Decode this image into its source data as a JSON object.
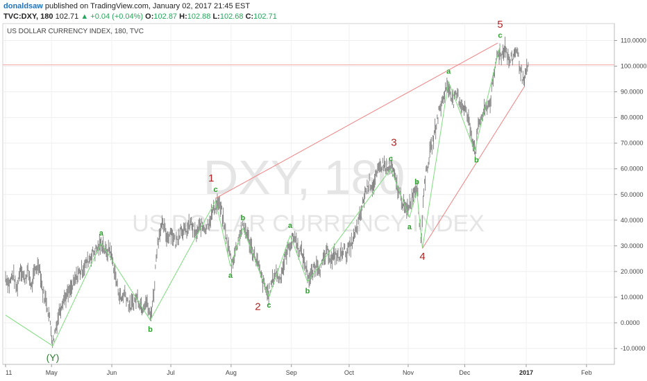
{
  "header": {
    "user": "donaldsaw",
    "published": "published on TradingView.com, January 02, 2017 21:45 EST",
    "symbol": "TVC:DXY, 180",
    "last": "102.71",
    "change": "+0.04 (+0.04%)",
    "o_label": "O:",
    "o_value": "102.87",
    "h_label": "H:",
    "h_value": "102.88",
    "l_label": "L:",
    "l_value": "102.68",
    "c_label": "C:",
    "c_value": "102.71"
  },
  "watermark": {
    "symbol": "DXY, 180",
    "name": "US DOLLAR CURRENCY INDEX"
  },
  "chart_data": {
    "type": "line",
    "title": "US DOLLAR CURRENCY INDEX, 180, TVC",
    "ylim": [
      -15,
      115
    ],
    "xlim": [
      0,
      100
    ],
    "grid": true,
    "yticks": [
      {
        "v": 110,
        "label": "110.0000"
      },
      {
        "v": 100,
        "label": "100.0000"
      },
      {
        "v": 90,
        "label": "90.0000"
      },
      {
        "v": 80,
        "label": "80.0000"
      },
      {
        "v": 70,
        "label": "70.0000"
      },
      {
        "v": 60,
        "label": "60.0000"
      },
      {
        "v": 50,
        "label": "50.0000"
      },
      {
        "v": 40,
        "label": "40.0000"
      },
      {
        "v": 30,
        "label": "30.0000"
      },
      {
        "v": 20,
        "label": "20.0000"
      },
      {
        "v": 10,
        "label": "10.0000"
      },
      {
        "v": 0,
        "label": "0.0000"
      },
      {
        "v": -10,
        "label": "-10.0000"
      }
    ],
    "xticks": [
      {
        "t": 0,
        "label": "11"
      },
      {
        "t": 7.4,
        "label": "May"
      },
      {
        "t": 17.1,
        "label": "Jun"
      },
      {
        "t": 26.6,
        "label": "Jul"
      },
      {
        "t": 36.3,
        "label": "Aug"
      },
      {
        "t": 46.0,
        "label": "Sep"
      },
      {
        "t": 55.3,
        "label": "Oct"
      },
      {
        "t": 64.8,
        "label": "Nov"
      },
      {
        "t": 73.9,
        "label": "Dec"
      },
      {
        "t": 83.8,
        "label": "2017"
      },
      {
        "t": 93.5,
        "label": "Feb"
      }
    ],
    "reference_line": {
      "y": 100.5,
      "color": "#f4a6a6"
    },
    "price_anchors": [
      [
        0,
        18
      ],
      [
        0.6,
        15
      ],
      [
        1.2,
        19
      ],
      [
        1.8,
        13
      ],
      [
        2.4,
        22
      ],
      [
        3,
        17
      ],
      [
        3.6,
        20
      ],
      [
        4.2,
        14
      ],
      [
        4.8,
        21
      ],
      [
        5.4,
        23
      ],
      [
        6,
        12
      ],
      [
        6.6,
        8
      ],
      [
        7.2,
        0
      ],
      [
        7.6,
        -8
      ],
      [
        8,
        -3
      ],
      [
        8.6,
        4
      ],
      [
        9.2,
        9
      ],
      [
        10,
        11
      ],
      [
        10.8,
        14
      ],
      [
        11.6,
        19
      ],
      [
        12.4,
        21
      ],
      [
        13.2,
        24
      ],
      [
        14,
        27
      ],
      [
        14.8,
        29
      ],
      [
        15.6,
        31
      ],
      [
        16.2,
        27
      ],
      [
        16.8,
        29
      ],
      [
        17.4,
        22
      ],
      [
        18,
        14
      ],
      [
        18.6,
        9
      ],
      [
        19.2,
        12
      ],
      [
        20,
        6
      ],
      [
        20.6,
        8
      ],
      [
        21.2,
        10
      ],
      [
        22,
        6
      ],
      [
        22.6,
        9
      ],
      [
        23.3,
        2
      ],
      [
        23.9,
        12
      ],
      [
        24.3,
        28
      ],
      [
        24.8,
        36
      ],
      [
        25.4,
        38
      ],
      [
        26,
        33
      ],
      [
        26.6,
        36
      ],
      [
        27.4,
        31
      ],
      [
        28.2,
        37
      ],
      [
        29,
        35
      ],
      [
        29.8,
        39
      ],
      [
        30.6,
        34
      ],
      [
        31.4,
        38
      ],
      [
        32.2,
        37
      ],
      [
        33,
        41
      ],
      [
        33.6,
        45
      ],
      [
        34.2,
        47
      ],
      [
        34.8,
        43
      ],
      [
        35.4,
        35
      ],
      [
        36,
        28
      ],
      [
        36.4,
        23
      ],
      [
        36.9,
        27
      ],
      [
        37.5,
        33
      ],
      [
        38.1,
        37
      ],
      [
        38.7,
        36
      ],
      [
        39.3,
        31
      ],
      [
        39.9,
        27
      ],
      [
        40.5,
        24
      ],
      [
        41.1,
        18
      ],
      [
        41.7,
        14
      ],
      [
        42.3,
        11
      ],
      [
        42.9,
        16
      ],
      [
        43.5,
        20
      ],
      [
        44.1,
        17
      ],
      [
        44.7,
        22
      ],
      [
        45.3,
        28
      ],
      [
        45.9,
        31
      ],
      [
        46.5,
        34
      ],
      [
        47.1,
        29
      ],
      [
        47.7,
        27
      ],
      [
        48.3,
        22
      ],
      [
        48.9,
        17
      ],
      [
        49.5,
        20
      ],
      [
        50.1,
        23
      ],
      [
        50.7,
        21
      ],
      [
        51.3,
        25
      ],
      [
        51.9,
        28
      ],
      [
        52.5,
        24
      ],
      [
        53.1,
        27
      ],
      [
        53.7,
        25
      ],
      [
        54.3,
        29
      ],
      [
        54.9,
        27
      ],
      [
        55.5,
        30
      ],
      [
        56.1,
        33
      ],
      [
        56.7,
        38
      ],
      [
        57.3,
        44
      ],
      [
        57.9,
        51
      ],
      [
        58.5,
        55
      ],
      [
        59.1,
        53
      ],
      [
        59.7,
        57
      ],
      [
        60.3,
        61
      ],
      [
        60.9,
        62
      ],
      [
        61.5,
        59
      ],
      [
        62.1,
        61
      ],
      [
        62.7,
        56
      ],
      [
        63.3,
        51
      ],
      [
        63.9,
        47
      ],
      [
        64.5,
        43
      ],
      [
        65.1,
        47
      ],
      [
        65.7,
        51
      ],
      [
        66.3,
        54
      ],
      [
        66.6,
        40
      ],
      [
        66.9,
        31
      ],
      [
        67.3,
        52
      ],
      [
        67.8,
        60
      ],
      [
        68.3,
        66
      ],
      [
        68.8,
        71
      ],
      [
        69.3,
        77
      ],
      [
        69.8,
        83
      ],
      [
        70.3,
        86
      ],
      [
        70.9,
        92
      ],
      [
        71.5,
        91
      ],
      [
        72.1,
        86
      ],
      [
        72.7,
        89
      ],
      [
        73.3,
        85
      ],
      [
        73.9,
        84
      ],
      [
        74.5,
        79
      ],
      [
        75.1,
        72
      ],
      [
        75.6,
        67
      ],
      [
        76.2,
        78
      ],
      [
        76.8,
        81
      ],
      [
        77.4,
        84
      ],
      [
        78,
        86
      ],
      [
        78.6,
        96
      ],
      [
        79.2,
        106
      ],
      [
        79.8,
        104
      ],
      [
        80.4,
        108
      ],
      [
        81,
        102
      ],
      [
        81.6,
        103
      ],
      [
        82.2,
        107
      ],
      [
        82.8,
        100
      ],
      [
        83.4,
        93
      ],
      [
        83.8,
        97
      ],
      [
        84.2,
        102
      ]
    ],
    "wave_segments": [
      {
        "color": "#7ddc7d",
        "points": [
          [
            0,
            3
          ],
          [
            7.6,
            -9
          ]
        ]
      },
      {
        "color": "#7ddc7d",
        "points": [
          [
            7.6,
            -9
          ],
          [
            15.4,
            31
          ]
        ]
      },
      {
        "color": "#7ddc7d",
        "points": [
          [
            15.4,
            31
          ],
          [
            23.3,
            1
          ]
        ]
      },
      {
        "color": "#7ddc7d",
        "points": [
          [
            23.3,
            1
          ],
          [
            33.8,
            47.5
          ]
        ]
      },
      {
        "color": "#7ddc7d",
        "points": [
          [
            33.8,
            47.5
          ],
          [
            36.2,
            22
          ]
        ]
      },
      {
        "color": "#7ddc7d",
        "points": [
          [
            36.2,
            22
          ],
          [
            38.2,
            37
          ]
        ]
      },
      {
        "color": "#7ddc7d",
        "points": [
          [
            38.2,
            37
          ],
          [
            42.4,
            10
          ]
        ]
      },
      {
        "color": "#7ddc7d",
        "points": [
          [
            42.4,
            10
          ],
          [
            45.8,
            34
          ]
        ]
      },
      {
        "color": "#7ddc7d",
        "points": [
          [
            45.8,
            34
          ],
          [
            48.6,
            16
          ]
        ]
      },
      {
        "color": "#7ddc7d",
        "points": [
          [
            48.6,
            16
          ],
          [
            62,
            60
          ]
        ]
      },
      {
        "color": "#7ddc7d",
        "points": [
          [
            62,
            60
          ],
          [
            65,
            41
          ]
        ]
      },
      {
        "color": "#7ddc7d",
        "points": [
          [
            65,
            41
          ],
          [
            66.2,
            51
          ]
        ]
      },
      {
        "color": "#7ddc7d",
        "points": [
          [
            66.2,
            51
          ],
          [
            67.1,
            29
          ]
        ]
      },
      {
        "color": "#7ddc7d",
        "points": [
          [
            67.1,
            29
          ],
          [
            71.3,
            94
          ]
        ]
      },
      {
        "color": "#7ddc7d",
        "points": [
          [
            71.3,
            94
          ],
          [
            75.5,
            67
          ]
        ]
      },
      {
        "color": "#7ddc7d",
        "points": [
          [
            75.5,
            67
          ],
          [
            79.6,
            108
          ]
        ]
      },
      {
        "color": "#f08080",
        "points": [
          [
            33.8,
            48.5
          ],
          [
            79.2,
            109
          ]
        ]
      },
      {
        "color": "#f08080",
        "points": [
          [
            67.1,
            29
          ],
          [
            83.5,
            92
          ]
        ]
      }
    ],
    "annotations": [
      {
        "text": "(Y)",
        "x": 7.6,
        "y": -14.8,
        "style": "Y"
      },
      {
        "text": "a",
        "x": 15.4,
        "y": 34,
        "style": "g"
      },
      {
        "text": "b",
        "x": 23.3,
        "y": -3.5,
        "style": "g"
      },
      {
        "text": "c",
        "x": 33.8,
        "y": 51,
        "style": "g"
      },
      {
        "text": "1",
        "x": 33.1,
        "y": 55,
        "style": "r"
      },
      {
        "text": "a",
        "x": 36.2,
        "y": 17.5,
        "style": "g"
      },
      {
        "text": "b",
        "x": 38.2,
        "y": 40,
        "style": "g"
      },
      {
        "text": "c",
        "x": 42.4,
        "y": 6,
        "style": "g"
      },
      {
        "text": "2",
        "x": 40.6,
        "y": 5,
        "style": "r"
      },
      {
        "text": "a",
        "x": 45.8,
        "y": 37,
        "style": "g"
      },
      {
        "text": "b",
        "x": 48.6,
        "y": 11.5,
        "style": "g"
      },
      {
        "text": "c",
        "x": 62,
        "y": 63,
        "style": "g"
      },
      {
        "text": "3",
        "x": 62.5,
        "y": 69,
        "style": "r"
      },
      {
        "text": "a",
        "x": 65,
        "y": 36.5,
        "style": "g"
      },
      {
        "text": "b",
        "x": 66.2,
        "y": 54,
        "style": "g"
      },
      {
        "text": "4",
        "x": 67.1,
        "y": 24.5,
        "style": "r"
      },
      {
        "text": "a",
        "x": 71.3,
        "y": 97,
        "style": "g"
      },
      {
        "text": "b",
        "x": 75.8,
        "y": 62.5,
        "style": "g"
      },
      {
        "text": "c",
        "x": 79.6,
        "y": 111,
        "style": "g"
      },
      {
        "text": "5",
        "x": 79.6,
        "y": 115,
        "style": "r"
      }
    ]
  }
}
